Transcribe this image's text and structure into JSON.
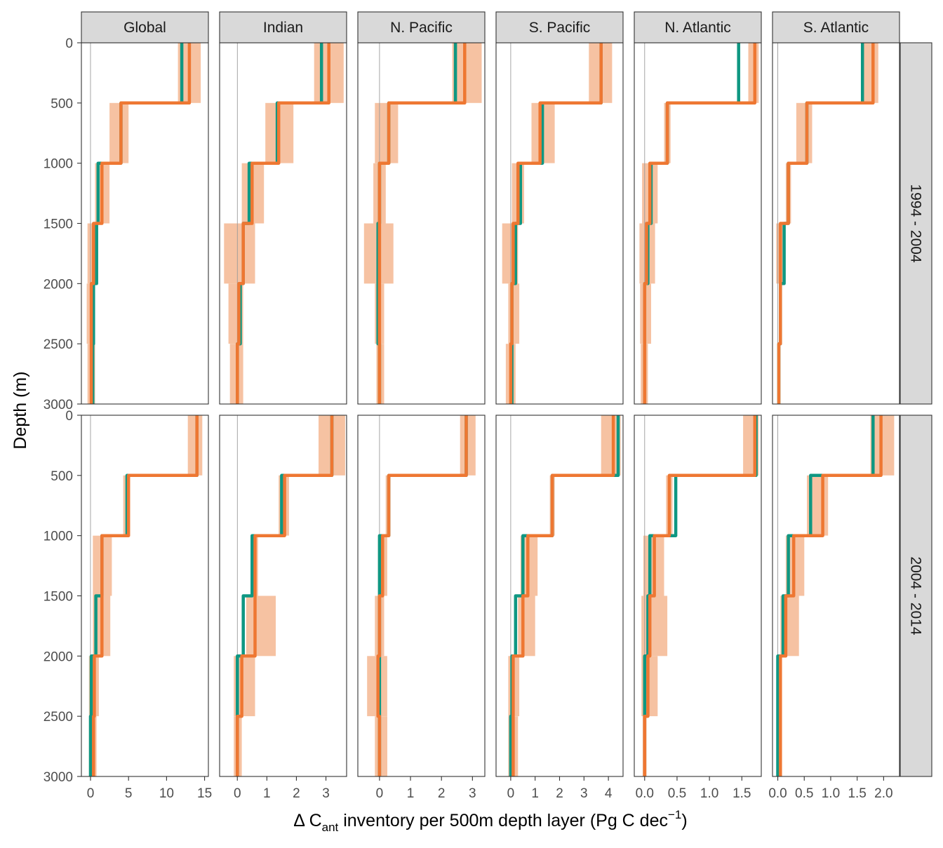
{
  "chart_data": {
    "type": "line",
    "xlabel": "Δ Cant inventory per 500m depth layer (Pg C dec−1)",
    "xlabel_parts": {
      "delta": "Δ C",
      "sub": "ant",
      "middle": " inventory per 500m depth layer ",
      "paren_open": "(",
      "unit": "Pg C dec",
      "sup": "−1",
      "paren_close": ")"
    },
    "ylabel": "Depth (m)",
    "ylim": [
      3000,
      0
    ],
    "y_ticks": [
      "0",
      "500",
      "1000",
      "1500",
      "2000",
      "2500",
      "3000"
    ],
    "y_tick_values": [
      0,
      500,
      1000,
      1500,
      2000,
      2500,
      3000
    ],
    "layer_depths": [
      0,
      500,
      1000,
      1500,
      2000,
      2500,
      3000
    ],
    "grid": false,
    "colors": {
      "series_a": "#0f9782",
      "series_b": "#ee7732",
      "band": "#f6c2a2",
      "zero_line": "#9a9a9a"
    },
    "facet_columns": [
      "Global",
      "Indian",
      "N. Pacific",
      "S. Pacific",
      "N. Atlantic",
      "S. Atlantic"
    ],
    "facet_rows": [
      "1994 - 2004",
      "2004 - 2014"
    ],
    "x_axes": [
      {
        "column": "Global",
        "xlim": [
          -1.2,
          15.5
        ],
        "ticks": [
          "0",
          "5",
          "10",
          "15"
        ],
        "tick_values": [
          0,
          5,
          10,
          15
        ]
      },
      {
        "column": "Indian",
        "xlim": [
          -0.6,
          3.7
        ],
        "ticks": [
          "0",
          "1",
          "2",
          "3"
        ],
        "tick_values": [
          0,
          1,
          2,
          3
        ]
      },
      {
        "column": "N. Pacific",
        "xlim": [
          -0.7,
          3.4
        ],
        "ticks": [
          "0",
          "1",
          "2",
          "3"
        ],
        "tick_values": [
          0,
          1,
          2,
          3
        ]
      },
      {
        "column": "S. Pacific",
        "xlim": [
          -0.6,
          4.6
        ],
        "ticks": [
          "0",
          "1",
          "2",
          "3",
          "4"
        ],
        "tick_values": [
          0,
          1,
          2,
          3,
          4
        ]
      },
      {
        "column": "N. Atlantic",
        "xlim": [
          -0.16,
          1.8
        ],
        "ticks": [
          "0.0",
          "0.5",
          "1.0",
          "1.5"
        ],
        "tick_values": [
          0,
          0.5,
          1.0,
          1.5
        ]
      },
      {
        "column": "S. Atlantic",
        "xlim": [
          -0.1,
          2.3
        ],
        "ticks": [
          "0.0",
          "0.5",
          "1.0",
          "1.5",
          "2.0"
        ],
        "tick_values": [
          0,
          0.5,
          1.0,
          1.5,
          2.0
        ]
      }
    ],
    "panels": [
      {
        "row": "1994 - 2004",
        "column": "Global",
        "series_a": [
          12.0,
          4.0,
          1.0,
          0.8,
          0.4,
          0.3
        ],
        "series_b": [
          13.0,
          4.0,
          1.5,
          0.4,
          0.1,
          0.1
        ],
        "band_b": [
          [
            11.5,
            14.5
          ],
          [
            2.5,
            5.0
          ],
          [
            0.6,
            2.5
          ],
          [
            -0.4,
            1.0
          ],
          [
            -0.5,
            0.6
          ],
          [
            -0.4,
            0.6
          ]
        ]
      },
      {
        "row": "1994 - 2004",
        "column": "Indian",
        "series_a": [
          2.85,
          1.35,
          0.4,
          0.2,
          0.1,
          0.0
        ],
        "series_b": [
          3.1,
          1.4,
          0.5,
          0.2,
          0.05,
          0.0
        ],
        "band_b": [
          [
            2.6,
            3.6
          ],
          [
            0.95,
            1.9
          ],
          [
            0.15,
            0.9
          ],
          [
            -0.45,
            0.6
          ],
          [
            -0.3,
            0.2
          ],
          [
            -0.25,
            0.2
          ]
        ]
      },
      {
        "row": "1994 - 2004",
        "column": "N. Pacific",
        "series_a": [
          2.45,
          0.3,
          0.0,
          -0.05,
          -0.05,
          0.0
        ],
        "series_b": [
          2.75,
          0.3,
          0.0,
          0.0,
          0.0,
          0.0
        ],
        "band_b": [
          [
            2.35,
            3.3
          ],
          [
            -0.15,
            0.6
          ],
          [
            -0.2,
            0.2
          ],
          [
            -0.5,
            0.45
          ],
          [
            -0.15,
            0.15
          ],
          [
            -0.1,
            0.15
          ]
        ]
      },
      {
        "row": "1994 - 2004",
        "column": "S. Pacific",
        "series_a": [
          3.7,
          1.3,
          0.4,
          0.2,
          0.05,
          0.05
        ],
        "series_b": [
          3.7,
          1.2,
          0.3,
          0.1,
          0.05,
          0.0
        ],
        "band_b": [
          [
            3.2,
            4.15
          ],
          [
            0.85,
            1.8
          ],
          [
            0.05,
            0.55
          ],
          [
            -0.35,
            0.3
          ],
          [
            -0.1,
            0.35
          ],
          [
            -0.2,
            0.2
          ]
        ]
      },
      {
        "row": "1994 - 2004",
        "column": "N. Atlantic",
        "series_a": [
          1.45,
          0.35,
          0.1,
          0.05,
          0.0,
          0.0
        ],
        "series_b": [
          1.7,
          0.35,
          0.08,
          0.03,
          0.0,
          0.0
        ],
        "band_b": [
          [
            1.6,
            1.76
          ],
          [
            0.3,
            0.4
          ],
          [
            -0.04,
            0.2
          ],
          [
            -0.08,
            0.16
          ],
          [
            -0.07,
            0.1
          ],
          [
            -0.06,
            0.05
          ]
        ]
      },
      {
        "row": "1994 - 2004",
        "column": "S. Atlantic",
        "series_a": [
          1.6,
          0.55,
          0.2,
          0.12,
          0.05,
          0.02
        ],
        "series_b": [
          1.8,
          0.55,
          0.2,
          0.05,
          0.05,
          0.02
        ],
        "band_b": [
          [
            1.62,
            1.9
          ],
          [
            0.35,
            0.65
          ],
          [
            0.15,
            0.25
          ],
          [
            -0.03,
            0.12
          ],
          [
            0.02,
            0.08
          ],
          [
            0.0,
            0.05
          ]
        ]
      },
      {
        "row": "2004 - 2014",
        "column": "Global",
        "series_a": [
          14.0,
          4.8,
          1.5,
          0.7,
          0.1,
          0.0
        ],
        "series_b": [
          14.0,
          5.0,
          1.5,
          1.5,
          0.5,
          0.4
        ],
        "band_b": [
          [
            12.8,
            14.7
          ],
          [
            4.3,
            5.1
          ],
          [
            0.3,
            2.8
          ],
          [
            0.3,
            2.6
          ],
          [
            -0.2,
            1.1
          ],
          [
            -0.2,
            0.8
          ]
        ]
      },
      {
        "row": "2004 - 2014",
        "column": "Indian",
        "series_a": [
          3.2,
          1.5,
          0.5,
          0.2,
          0.0,
          0.0
        ],
        "series_b": [
          3.2,
          1.6,
          0.6,
          0.6,
          0.15,
          0.0
        ],
        "band_b": [
          [
            2.75,
            3.65
          ],
          [
            1.4,
            1.75
          ],
          [
            0.5,
            0.7
          ],
          [
            0.3,
            1.3
          ],
          [
            -0.12,
            0.6
          ],
          [
            -0.12,
            0.15
          ]
        ]
      },
      {
        "row": "2004 - 2014",
        "column": "N. Pacific",
        "series_a": [
          2.8,
          0.3,
          0.0,
          0.0,
          0.0,
          0.0
        ],
        "series_b": [
          2.8,
          0.3,
          0.1,
          0.0,
          -0.05,
          0.0
        ],
        "band_b": [
          [
            2.6,
            3.1
          ],
          [
            0.2,
            0.35
          ],
          [
            -0.05,
            0.25
          ],
          [
            -0.15,
            0.15
          ],
          [
            -0.4,
            0.25
          ],
          [
            -0.15,
            0.25
          ]
        ]
      },
      {
        "row": "2004 - 2014",
        "column": "S. Pacific",
        "series_a": [
          4.4,
          1.7,
          0.5,
          0.2,
          0.05,
          0.0
        ],
        "series_b": [
          4.2,
          1.7,
          0.7,
          0.5,
          0.1,
          0.1
        ],
        "band_b": [
          [
            3.7,
            4.5
          ],
          [
            1.6,
            1.8
          ],
          [
            0.4,
            1.1
          ],
          [
            0.3,
            1.0
          ],
          [
            -0.1,
            0.35
          ],
          [
            -0.1,
            0.3
          ]
        ]
      },
      {
        "row": "2004 - 2014",
        "column": "N. Atlantic",
        "series_a": [
          1.72,
          0.48,
          0.08,
          0.05,
          0.0,
          0.0
        ],
        "series_b": [
          1.7,
          0.38,
          0.15,
          0.08,
          0.05,
          0.0
        ],
        "band_b": [
          [
            1.52,
            1.76
          ],
          [
            0.33,
            0.43
          ],
          [
            -0.02,
            0.3
          ],
          [
            -0.05,
            0.35
          ],
          [
            -0.05,
            0.2
          ],
          [
            -0.03,
            0.03
          ]
        ]
      },
      {
        "row": "2004 - 2014",
        "column": "S. Atlantic",
        "series_a": [
          1.8,
          0.62,
          0.2,
          0.1,
          0.0,
          0.0
        ],
        "series_b": [
          1.95,
          0.85,
          0.3,
          0.15,
          0.05,
          0.05
        ],
        "band_b": [
          [
            1.75,
            2.2
          ],
          [
            0.55,
            0.95
          ],
          [
            0.15,
            0.5
          ],
          [
            0.05,
            0.4
          ],
          [
            0.0,
            0.08
          ],
          [
            0.0,
            0.08
          ]
        ]
      }
    ]
  }
}
